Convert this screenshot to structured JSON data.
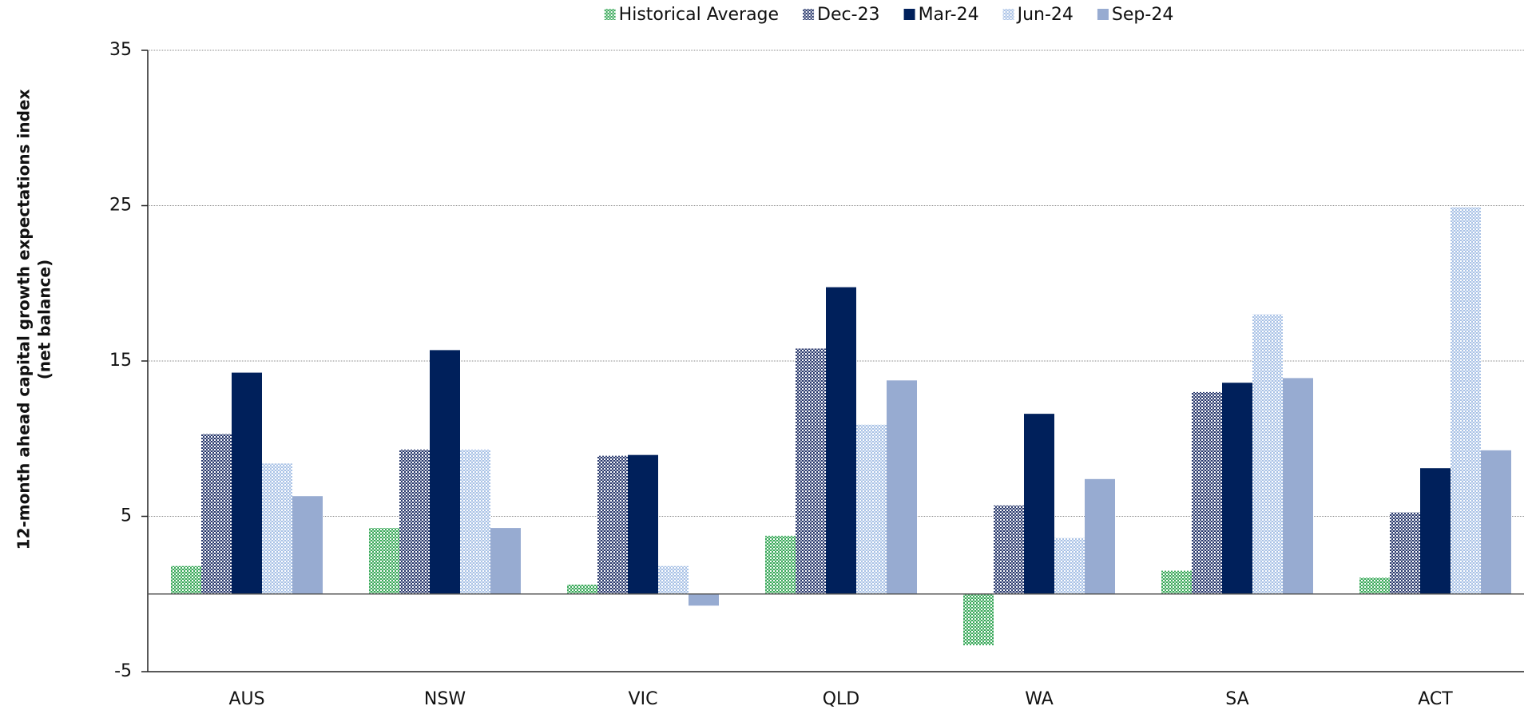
{
  "chart_data": {
    "type": "bar",
    "ylabel": [
      "12-month ahead capital growth expectations index",
      "(net balance)"
    ],
    "categories": [
      "AUS",
      "NSW",
      "VIC",
      "QLD",
      "WA",
      "SA",
      "ACT"
    ],
    "series": [
      {
        "name": "Historical Average",
        "color": "#3aa95a",
        "pattern": true,
        "values": [
          1.8,
          4.25,
          0.6,
          3.75,
          -3.3,
          1.5,
          1.05
        ]
      },
      {
        "name": "Dec-23",
        "color": "#2a3a6e",
        "pattern": true,
        "values": [
          10.3,
          9.3,
          8.9,
          15.8,
          5.7,
          13,
          5.25
        ]
      },
      {
        "name": "Mar-24",
        "color": "#00205b",
        "pattern": false,
        "values": [
          14.25,
          15.7,
          8.95,
          19.75,
          11.6,
          13.6,
          8.1
        ]
      },
      {
        "name": "Jun-24",
        "color": "#a9c2e6",
        "pattern": true,
        "values": [
          8.4,
          9.3,
          1.8,
          10.9,
          3.6,
          18,
          24.9
        ]
      },
      {
        "name": "Sep-24",
        "color": "#97abd1",
        "pattern": false,
        "values": [
          6.3,
          4.25,
          -0.75,
          13.75,
          7.4,
          13.9,
          9.25
        ]
      }
    ],
    "ylim": [
      -5,
      35
    ],
    "yticks": [
      -5,
      5,
      15,
      25,
      35
    ],
    "grid": true,
    "legend": "top"
  }
}
